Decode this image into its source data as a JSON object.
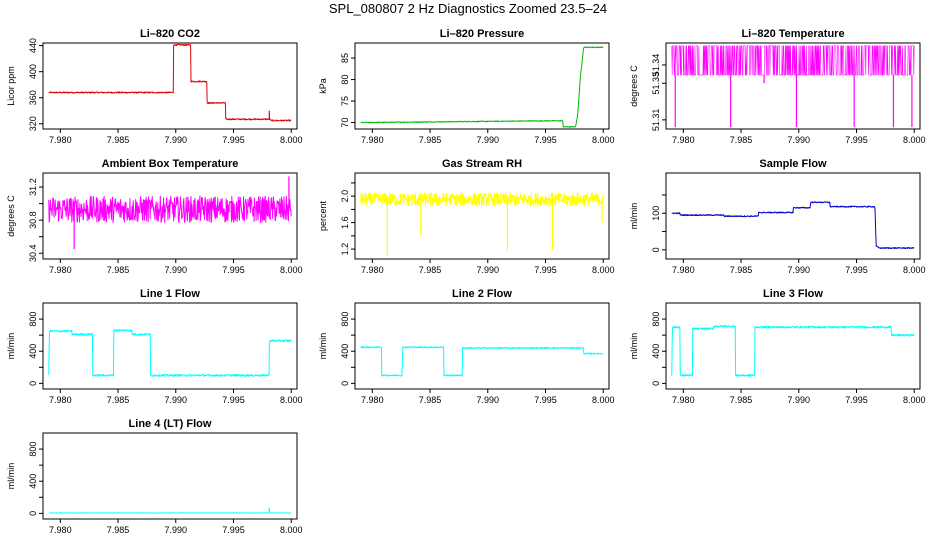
{
  "title": "SPL_080807  2 Hz Diagnostics Zoomed 23.5–24",
  "colors": {
    "axis": "#000000"
  },
  "chart_data": [
    {
      "type": "line",
      "title": "Li–820 CO2",
      "ylabel": "Licor ppm",
      "color": "#dd0000",
      "xlim": [
        7.9785,
        8.0005
      ],
      "ylim": [
        312,
        444
      ],
      "xticks": [
        7.98,
        7.985,
        7.99,
        7.995,
        8.0
      ],
      "xtick_labels": [
        "7.980",
        "7.985",
        "7.990",
        "7.995",
        "8.000"
      ],
      "yticks": [
        320,
        360,
        400,
        440
      ],
      "ytick_labels": [
        "320",
        "360",
        "400",
        "440"
      ],
      "noise": 1.0,
      "x": [
        7.979,
        7.9898,
        7.98981,
        7.9913,
        7.99131,
        7.9927,
        7.99271,
        7.9943,
        7.99431,
        7.9982,
        7.99821,
        8.0
      ],
      "y": [
        368,
        368,
        441,
        441,
        385,
        385,
        352,
        352,
        327,
        327,
        325,
        325
      ],
      "spikes": [
        {
          "x": 7.9981,
          "y": 340
        }
      ]
    },
    {
      "type": "line",
      "title": "Li–820 Pressure",
      "ylabel": "kPa",
      "color": "#00bb00",
      "xlim": [
        7.9785,
        8.0005
      ],
      "ylim": [
        68.5,
        88.5
      ],
      "xticks": [
        7.98,
        7.985,
        7.99,
        7.995,
        8.0
      ],
      "xtick_labels": [
        "7.980",
        "7.985",
        "7.990",
        "7.995",
        "8.000"
      ],
      "yticks": [
        70,
        75,
        80,
        85
      ],
      "ytick_labels": [
        "70",
        "75",
        "80",
        "85"
      ],
      "noise": 0.1,
      "x": [
        7.979,
        7.995,
        7.9965,
        7.99651,
        7.9976,
        7.9978,
        7.998,
        7.9983,
        8.0
      ],
      "y": [
        70.0,
        70.4,
        70.4,
        69.0,
        69.0,
        72.0,
        80.0,
        87.5,
        87.5
      ],
      "spikes": []
    },
    {
      "type": "line",
      "title": "Li–820 Temperature",
      "ylabel": "degrees C",
      "color": "#ff00ff",
      "xlim": [
        7.9785,
        8.0005
      ],
      "ylim": [
        51.305,
        51.352
      ],
      "xticks": [
        7.98,
        7.985,
        7.99,
        7.995,
        8.0
      ],
      "xtick_labels": [
        "7.980",
        "7.985",
        "7.990",
        "7.995",
        "8.000"
      ],
      "yticks": [
        51.31,
        51.33,
        51.34
      ],
      "ytick_labels": [
        "51.31",
        "51.33",
        "51.34"
      ],
      "binary": [
        51.3345,
        51.3505
      ],
      "x": [
        7.979,
        8.0
      ],
      "y": [
        51.34,
        51.34
      ],
      "spikes": [
        {
          "x": 7.9793,
          "y": 51.306
        },
        {
          "x": 7.9841,
          "y": 51.306
        },
        {
          "x": 7.987,
          "y": 51.33
        },
        {
          "x": 7.9898,
          "y": 51.306
        },
        {
          "x": 7.9948,
          "y": 51.306
        },
        {
          "x": 7.9982,
          "y": 51.306
        },
        {
          "x": 7.9998,
          "y": 51.306
        }
      ]
    },
    {
      "type": "line",
      "title": "Ambient Box Temperature",
      "ylabel": "degrees C",
      "color": "#ff00ff",
      "xlim": [
        7.9785,
        8.0005
      ],
      "ylim": [
        30.33,
        31.37
      ],
      "xticks": [
        7.98,
        7.985,
        7.99,
        7.995,
        8.0
      ],
      "xtick_labels": [
        "7.980",
        "7.985",
        "7.990",
        "7.995",
        "8.000"
      ],
      "yticks": [
        30.4,
        30.6,
        30.8,
        31.0,
        31.2
      ],
      "ytick_labels": [
        "30.4",
        "",
        "30.8",
        "",
        "31.2"
      ],
      "noise": 0.16,
      "x": [
        7.979,
        8.0
      ],
      "y": [
        30.93,
        30.93
      ],
      "spikes": [
        {
          "x": 7.9812,
          "y": 30.45
        },
        {
          "x": 7.9998,
          "y": 31.33
        }
      ]
    },
    {
      "type": "line",
      "title": "Gas Stream RH",
      "ylabel": "percent",
      "color": "#ffff00",
      "xlim": [
        7.9785,
        8.0005
      ],
      "ylim": [
        1.05,
        2.35
      ],
      "xticks": [
        7.98,
        7.985,
        7.99,
        7.995,
        8.0
      ],
      "xtick_labels": [
        "7.980",
        "7.985",
        "7.990",
        "7.995",
        "8.000"
      ],
      "yticks": [
        1.2,
        1.4,
        1.6,
        1.8,
        2.0,
        2.2
      ],
      "ytick_labels": [
        "1.2",
        "",
        "1.6",
        "",
        "2.0",
        ""
      ],
      "noise": 0.1,
      "x": [
        7.979,
        8.0
      ],
      "y": [
        1.95,
        1.95
      ],
      "spikes": [
        {
          "x": 7.9813,
          "y": 1.1
        },
        {
          "x": 7.9917,
          "y": 1.18
        },
        {
          "x": 7.9956,
          "y": 1.18
        },
        {
          "x": 7.9842,
          "y": 1.4
        },
        {
          "x": 7.9999,
          "y": 1.6
        }
      ]
    },
    {
      "type": "line",
      "title": "Sample Flow",
      "ylabel": "ml/min",
      "color": "#0000cc",
      "xlim": [
        7.9785,
        8.0005
      ],
      "ylim": [
        -25,
        210
      ],
      "xticks": [
        7.98,
        7.985,
        7.99,
        7.995,
        8.0
      ],
      "xtick_labels": [
        "7.980",
        "7.985",
        "7.990",
        "7.995",
        "8.000"
      ],
      "yticks": [
        0,
        50,
        100,
        150
      ],
      "ytick_labels": [
        "0",
        "",
        "100",
        ""
      ],
      "noise": 1.5,
      "x": [
        7.979,
        7.9797,
        7.97971,
        7.9835,
        7.98351,
        7.9865,
        7.98651,
        7.9895,
        7.98951,
        7.991,
        7.99101,
        7.9927,
        7.99271,
        7.9966,
        7.9967,
        7.997,
        8.0
      ],
      "y": [
        100,
        100,
        95,
        95,
        92,
        92,
        102,
        102,
        115,
        115,
        130,
        130,
        118,
        118,
        10,
        5,
        5
      ],
      "spikes": []
    },
    {
      "type": "line",
      "title": "Line 1 Flow",
      "ylabel": "ml/min",
      "color": "#00ffff",
      "xlim": [
        7.9785,
        8.0005
      ],
      "ylim": [
        -70,
        1000
      ],
      "xticks": [
        7.98,
        7.985,
        7.99,
        7.995,
        8.0
      ],
      "xtick_labels": [
        "7.980",
        "7.985",
        "7.990",
        "7.995",
        "8.000"
      ],
      "yticks": [
        0,
        200,
        400,
        600,
        800
      ],
      "ytick_labels": [
        "0",
        "",
        "400",
        "",
        "800"
      ],
      "noise": 12,
      "x": [
        7.979,
        7.97905,
        7.981,
        7.98101,
        7.9828,
        7.98281,
        7.9846,
        7.98461,
        7.9862,
        7.98621,
        7.9878,
        7.98781,
        7.9981,
        7.99811,
        8.0
      ],
      "y": [
        100,
        650,
        650,
        610,
        610,
        100,
        100,
        660,
        660,
        610,
        610,
        100,
        100,
        530,
        530
      ],
      "spikes": []
    },
    {
      "type": "line",
      "title": "Line 2 Flow",
      "ylabel": "ml/min",
      "color": "#00ffff",
      "xlim": [
        7.9785,
        8.0005
      ],
      "ylim": [
        -70,
        1000
      ],
      "xticks": [
        7.98,
        7.985,
        7.99,
        7.995,
        8.0
      ],
      "xtick_labels": [
        "7.980",
        "7.985",
        "7.990",
        "7.995",
        "8.000"
      ],
      "yticks": [
        0,
        200,
        400,
        600,
        800
      ],
      "ytick_labels": [
        "0",
        "",
        "400",
        "",
        "800"
      ],
      "noise": 8,
      "x": [
        7.979,
        7.9808,
        7.98081,
        7.9826,
        7.98261,
        7.9862,
        7.98621,
        7.9878,
        7.98781,
        7.9983,
        7.99831,
        8.0
      ],
      "y": [
        450,
        450,
        100,
        100,
        450,
        450,
        100,
        100,
        440,
        440,
        370,
        370
      ],
      "spikes": []
    },
    {
      "type": "line",
      "title": "Line 3 Flow",
      "ylabel": "ml/min",
      "color": "#00ffff",
      "xlim": [
        7.9785,
        8.0005
      ],
      "ylim": [
        -70,
        1000
      ],
      "xticks": [
        7.98,
        7.985,
        7.99,
        7.995,
        8.0
      ],
      "xtick_labels": [
        "7.980",
        "7.985",
        "7.990",
        "7.995",
        "8.000"
      ],
      "yticks": [
        0,
        200,
        400,
        600,
        800
      ],
      "ytick_labels": [
        "0",
        "",
        "400",
        "",
        "800"
      ],
      "noise": 12,
      "x": [
        7.979,
        7.97905,
        7.9797,
        7.97971,
        7.9808,
        7.98081,
        7.9826,
        7.98261,
        7.9845,
        7.98451,
        7.9862,
        7.98621,
        7.998,
        7.99801,
        8.0
      ],
      "y": [
        100,
        700,
        700,
        100,
        100,
        680,
        680,
        710,
        710,
        100,
        100,
        700,
        700,
        600,
        600
      ],
      "spikes": []
    },
    {
      "type": "line",
      "title": "Line 4 (LT) Flow",
      "ylabel": "ml/min",
      "color": "#00ffff",
      "xlim": [
        7.9785,
        8.0005
      ],
      "ylim": [
        -70,
        1000
      ],
      "xticks": [
        7.98,
        7.985,
        7.99,
        7.995,
        8.0
      ],
      "xtick_labels": [
        "7.980",
        "7.985",
        "7.990",
        "7.995",
        "8.000"
      ],
      "yticks": [
        0,
        200,
        400,
        600,
        800
      ],
      "ytick_labels": [
        "0",
        "",
        "400",
        "",
        "800"
      ],
      "noise": 1.5,
      "x": [
        7.979,
        8.0
      ],
      "y": [
        5,
        5
      ],
      "spikes": [
        {
          "x": 7.9981,
          "y": 70
        }
      ]
    }
  ]
}
